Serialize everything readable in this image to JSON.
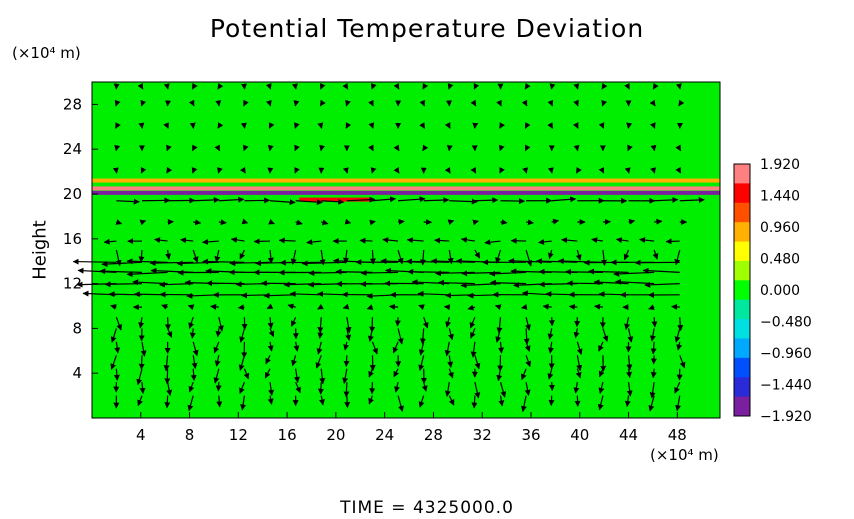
{
  "chart_data": {
    "type": "heatmap",
    "title": "Potential Temperature Deviation",
    "ylabel": "Height",
    "x_unit_label": "(×10⁴ m)",
    "y_unit_label": "(×10⁴ m)",
    "footer": "TIME = 4325000.0",
    "xlim": [
      0,
      51.5
    ],
    "ylim": [
      0,
      30
    ],
    "x_ticks": [
      "4",
      "8",
      "12",
      "16",
      "20",
      "24",
      "28",
      "32",
      "36",
      "40",
      "44",
      "48"
    ],
    "y_ticks": [
      "4",
      "8",
      "12",
      "16",
      "20",
      "24",
      "28"
    ],
    "colorbar": {
      "min": -1.92,
      "max": 1.92,
      "labels": [
        "1.920",
        "1.440",
        "0.960",
        "0.480",
        "0.000",
        "−0.480",
        "−0.960",
        "−1.440",
        "−1.920"
      ],
      "label_values": [
        1.92,
        1.44,
        0.96,
        0.48,
        0.0,
        -0.48,
        -0.96,
        -1.44,
        -1.92
      ],
      "colors": [
        "#7a1fa0",
        "#2a2ad8",
        "#0050ff",
        "#00a8ff",
        "#00e0e0",
        "#00e8a0",
        "#00ff00",
        "#a0ff00",
        "#ffff00",
        "#ffb000",
        "#ff5000",
        "#ff0000",
        "#ff8080"
      ]
    },
    "field_background": "#00ee00",
    "anomaly_bands": [
      {
        "y": 21.2,
        "value": 0.9,
        "x_start": 0,
        "x_end": 51.5
      },
      {
        "y": 20.5,
        "value": 1.8,
        "x_start": 0,
        "x_end": 51.5
      },
      {
        "y": 20.1,
        "value": -1.9,
        "x_start": 0,
        "x_end": 51.5
      },
      {
        "y": 19.5,
        "value": 1.5,
        "x_start": 17,
        "x_end": 23
      }
    ],
    "wind_levels": [
      {
        "y": 19.4,
        "u": 0.9
      },
      {
        "y": 17.5,
        "u": 0.2
      },
      {
        "y": 15.8,
        "u": -0.5
      },
      {
        "y": 13.9,
        "u": -1.5
      },
      {
        "y": 13.0,
        "u": -1.4
      },
      {
        "y": 12.0,
        "u": -1.3
      },
      {
        "y": 11.0,
        "u": -1.1
      },
      {
        "y": 9.9,
        "u": -0.2
      }
    ],
    "grid": false
  }
}
